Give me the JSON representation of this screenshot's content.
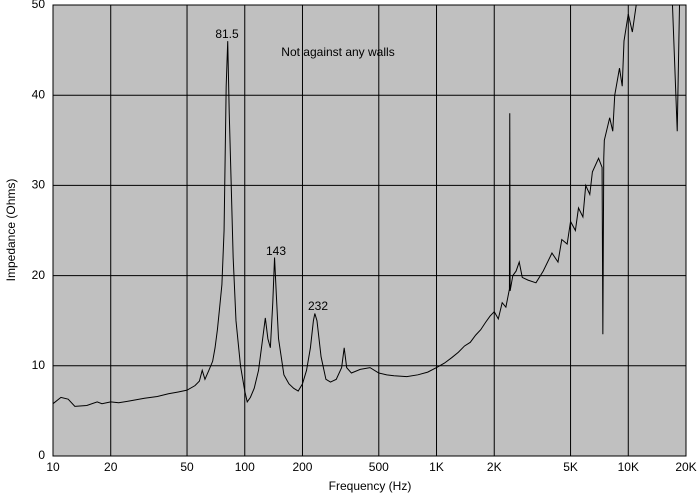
{
  "chart_data": {
    "type": "line",
    "x_label": "Frequency (Hz)",
    "y_label": "Impedance (Ohms)",
    "x_scale": "log",
    "grid": true,
    "annotations": [
      "81.5",
      "143",
      "232",
      "Not against any walls"
    ],
    "xlim": [
      10,
      20000
    ],
    "ylim": [
      0,
      50
    ],
    "xticks": [
      10,
      20,
      50,
      100,
      200,
      500,
      {
        "value": 1000,
        "label": "1K"
      },
      {
        "value": 2000,
        "label": "2K"
      },
      {
        "value": 5000,
        "label": "5K"
      },
      {
        "value": 10000,
        "label": "10K"
      },
      {
        "value": 20000,
        "label": "20K"
      }
    ],
    "yticks": [
      0,
      10,
      20,
      30,
      40,
      50
    ],
    "series": [
      {
        "color": "#000000",
        "x": [
          10,
          11,
          12,
          13,
          15,
          17,
          18,
          20,
          22,
          25,
          30,
          35,
          40,
          45,
          50,
          55,
          58,
          60,
          62,
          65,
          68,
          70,
          72,
          74,
          76,
          78,
          79,
          80,
          81.5,
          83,
          85,
          87,
          90,
          95,
          100,
          103,
          107,
          112,
          118,
          124,
          128,
          132,
          136,
          140,
          143,
          146,
          150,
          160,
          170,
          180,
          190,
          200,
          210,
          220,
          228,
          232,
          238,
          250,
          265,
          280,
          300,
          320,
          330,
          340,
          360,
          400,
          450,
          500,
          550,
          600,
          700,
          800,
          900,
          1000,
          1100,
          1200,
          1300,
          1400,
          1500,
          1600,
          1700,
          1800,
          1900,
          2000,
          2100,
          2200,
          2300,
          2400,
          2410,
          2420,
          2500,
          2600,
          2700,
          2800,
          3000,
          3300,
          3600,
          4000,
          4300,
          4500,
          4800,
          5000,
          5300,
          5500,
          5800,
          6000,
          6300,
          6500,
          7000,
          7300,
          7370,
          7450,
          7500,
          8000,
          8300,
          8500,
          9000,
          9300,
          9500,
          10000,
          10500,
          11000,
          12000,
          15000,
          17000,
          18000,
          18500,
          19000,
          20000
        ],
        "values": [
          5.8,
          6.5,
          6.3,
          5.5,
          5.6,
          6.0,
          5.8,
          6.0,
          5.9,
          6.1,
          6.4,
          6.6,
          6.9,
          7.1,
          7.3,
          7.8,
          8.3,
          9.5,
          8.5,
          9.5,
          10.5,
          12,
          14,
          16.5,
          19,
          25,
          33,
          41,
          46,
          38,
          30,
          22,
          15,
          10,
          7.2,
          6.0,
          6.5,
          7.5,
          9.5,
          13,
          15.3,
          13,
          12,
          17,
          22,
          18,
          13,
          9,
          8,
          7.5,
          7.2,
          8,
          9.5,
          12,
          15,
          15.8,
          15,
          11,
          8.5,
          8.2,
          8.5,
          9.8,
          12,
          9.8,
          9.2,
          9.6,
          9.8,
          9.2,
          9.0,
          8.9,
          8.8,
          9.0,
          9.3,
          9.8,
          10.3,
          10.9,
          11.5,
          12.2,
          12.6,
          13.4,
          14.0,
          14.8,
          15.5,
          16.0,
          15.2,
          17.0,
          16.5,
          18.5,
          38,
          18.3,
          20,
          20.5,
          21.5,
          19.8,
          19.5,
          19.2,
          20.5,
          22.5,
          21.5,
          24,
          23.5,
          26,
          25,
          27.5,
          26.5,
          30,
          29,
          31.5,
          33,
          32,
          13.5,
          33,
          35,
          37.5,
          36,
          40,
          43,
          41,
          46,
          49,
          47,
          50,
          50,
          50,
          50,
          36,
          50,
          50,
          50
        ]
      }
    ]
  }
}
